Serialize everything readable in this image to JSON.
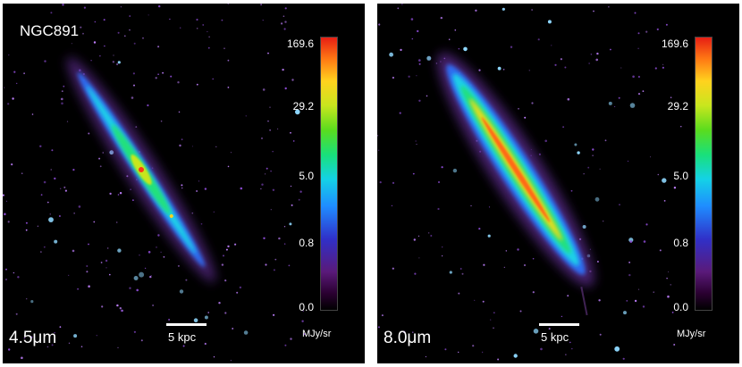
{
  "panels": [
    {
      "object_name": "NGC891",
      "band": "4.5μm",
      "scale_bar": "5 kpc",
      "colorbar": {
        "ticks": [
          "169.6",
          "29.2",
          "5.0",
          "0.8",
          "0.0"
        ],
        "unit": "MJy/sr"
      }
    },
    {
      "object_name": "",
      "band": "8.0μm",
      "scale_bar": "5 kpc",
      "colorbar": {
        "ticks": [
          "169.6",
          "29.2",
          "5.0",
          "0.8",
          "0.0"
        ],
        "unit": "MJy/sr"
      }
    }
  ],
  "colors": {
    "background": "#000000",
    "frame": "#ffffff",
    "text": "#ffffff"
  }
}
